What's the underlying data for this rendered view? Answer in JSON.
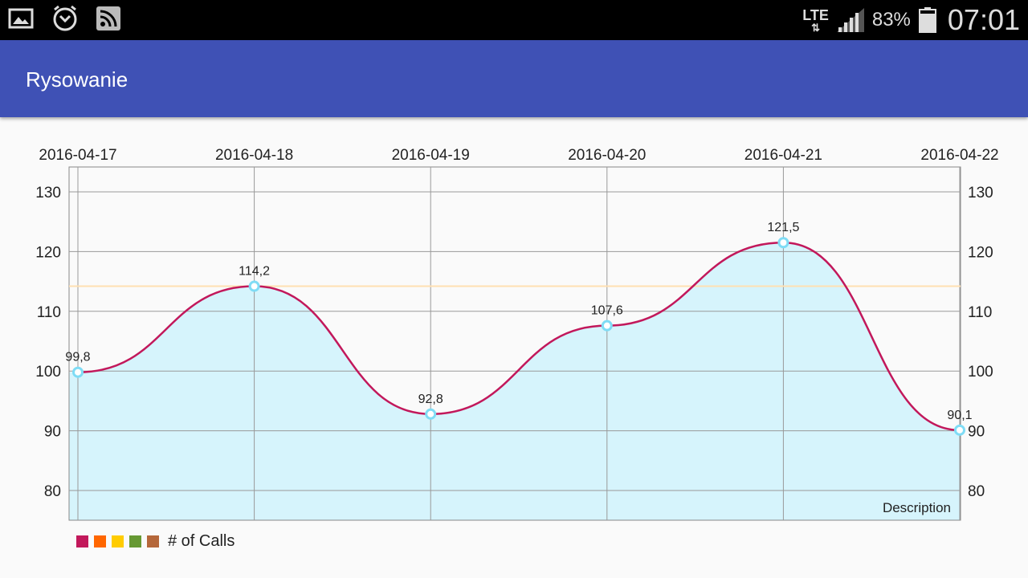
{
  "status_bar": {
    "network_type": "LTE",
    "battery": "83%",
    "time": "07:01",
    "icons": [
      "gallery-icon",
      "alarm-icon",
      "rss-icon",
      "data-transfer-icon",
      "signal-icon",
      "battery-icon"
    ]
  },
  "app_bar": {
    "title": "Rysowanie",
    "color": "#3f51b5"
  },
  "chart_data": {
    "type": "line",
    "x": [
      "2016-04-17",
      "2016-04-18",
      "2016-04-19",
      "2016-04-20",
      "2016-04-21",
      "2016-04-22"
    ],
    "series": [
      {
        "name": "# of Calls",
        "values": [
          99.8,
          114.2,
          92.8,
          107.6,
          121.5,
          90.1
        ],
        "value_labels": [
          "99,8",
          "114,2",
          "92,8",
          "107,6",
          "121,5",
          "90,1"
        ],
        "line_color": "#c2185b",
        "fill_color": "#d6f4fc",
        "marker_color": "#7fdcf5"
      }
    ],
    "y_ticks": [
      80,
      90,
      100,
      110,
      120,
      130
    ],
    "limit_line": 114.2,
    "limit_line_color": "#ffe0b2",
    "description": "Description",
    "grid": true,
    "legend_position": "bottom-left",
    "legend_colors": [
      "#c2185b",
      "#ff6600",
      "#ffcc00",
      "#669933",
      "#b5673a"
    ],
    "legend_label": "# of Calls"
  }
}
